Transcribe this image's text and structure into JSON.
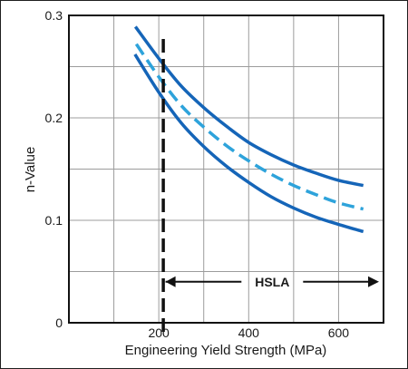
{
  "chart_data": {
    "type": "line",
    "xlabel": "Engineering Yield Strength (MPa)",
    "ylabel": "n-Value",
    "xlim": [
      0,
      700
    ],
    "ylim": [
      0,
      0.3
    ],
    "x_ticks": [
      {
        "value": 200,
        "label": "200"
      },
      {
        "value": 400,
        "label": "400"
      },
      {
        "value": 600,
        "label": "600"
      }
    ],
    "y_ticks": [
      {
        "value": 0,
        "label": "0"
      },
      {
        "value": 0.1,
        "label": "0.1"
      },
      {
        "value": 0.2,
        "label": "0.2"
      },
      {
        "value": 0.3,
        "label": "0.3"
      }
    ],
    "grid": true,
    "x_gridlines": [
      0,
      100,
      200,
      300,
      400,
      500,
      600,
      700
    ],
    "y_gridlines": [
      0,
      0.05,
      0.1,
      0.15,
      0.2,
      0.25,
      0.3
    ],
    "series": [
      {
        "style": "solid",
        "color": "#1565b8",
        "points": [
          [
            148,
            0.289
          ],
          [
            200,
            0.258
          ],
          [
            250,
            0.231
          ],
          [
            300,
            0.21
          ],
          [
            350,
            0.192
          ],
          [
            400,
            0.176
          ],
          [
            450,
            0.164
          ],
          [
            500,
            0.154
          ],
          [
            550,
            0.146
          ],
          [
            600,
            0.139
          ],
          [
            655,
            0.134
          ]
        ]
      },
      {
        "style": "dashed",
        "color": "#2ea3db",
        "points": [
          [
            150,
            0.272
          ],
          [
            200,
            0.24
          ],
          [
            250,
            0.212
          ],
          [
            300,
            0.191
          ],
          [
            350,
            0.173
          ],
          [
            400,
            0.158
          ],
          [
            450,
            0.145
          ],
          [
            500,
            0.134
          ],
          [
            550,
            0.125
          ],
          [
            600,
            0.117
          ],
          [
            655,
            0.111
          ]
        ]
      },
      {
        "style": "solid",
        "color": "#1565b8",
        "points": [
          [
            147,
            0.262
          ],
          [
            200,
            0.225
          ],
          [
            250,
            0.195
          ],
          [
            300,
            0.172
          ],
          [
            350,
            0.153
          ],
          [
            400,
            0.137
          ],
          [
            450,
            0.123
          ],
          [
            500,
            0.112
          ],
          [
            550,
            0.103
          ],
          [
            600,
            0.096
          ],
          [
            655,
            0.089
          ]
        ]
      }
    ],
    "reference_line": {
      "x": 210,
      "style": "dashed",
      "color": "#111111"
    },
    "annotation": {
      "text": "HSLA",
      "x_from": 215,
      "x_to": 700,
      "y": 0.04
    }
  }
}
